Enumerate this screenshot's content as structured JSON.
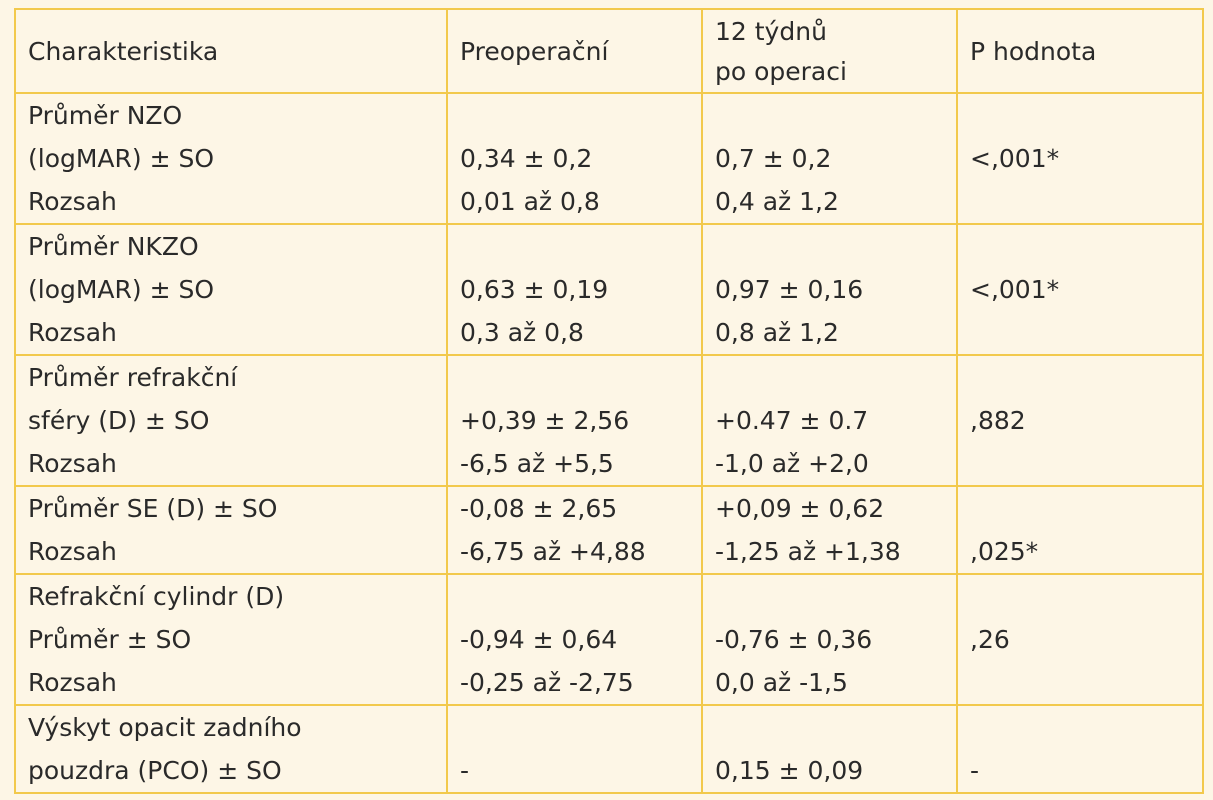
{
  "header": {
    "characteristic": "Charakteristika",
    "preop": "Preoperační",
    "postop_line1": "12 týdnů",
    "postop_line2": "po operaci",
    "pvalue": "P hodnota"
  },
  "rows": [
    {
      "label": [
        "Průměr NZO",
        "(logMAR) ± SO",
        "Rozsah"
      ],
      "preop": [
        "",
        "0,34 ± 0,2",
        "0,01 až 0,8"
      ],
      "postop": [
        "",
        "0,7 ± 0,2",
        "0,4 až 1,2"
      ],
      "p": [
        "",
        "<,001*",
        ""
      ]
    },
    {
      "label": [
        "Průměr NKZO",
        "(logMAR) ± SO",
        "Rozsah"
      ],
      "preop": [
        "",
        "0,63 ± 0,19",
        "0,3 až 0,8"
      ],
      "postop": [
        "",
        "0,97 ± 0,16",
        "0,8 až 1,2"
      ],
      "p": [
        "",
        "<,001*",
        ""
      ]
    },
    {
      "label": [
        "Průměr refrakční",
        "sféry (D) ± SO",
        "Rozsah"
      ],
      "preop": [
        "",
        "+0,39 ± 2,56",
        "-6,5 až +5,5"
      ],
      "postop": [
        "",
        "+0.47 ± 0.7",
        "-1,0 až +2,0"
      ],
      "p": [
        "",
        ",882",
        ""
      ]
    },
    {
      "label": [
        "Průměr SE (D) ± SO",
        "Rozsah"
      ],
      "preop": [
        "-0,08 ± 2,65",
        "-6,75 až +4,88"
      ],
      "postop": [
        "+0,09 ± 0,62",
        "-1,25 až +1,38"
      ],
      "p": [
        "",
        ",025*"
      ]
    },
    {
      "label": [
        "Refrakční cylindr (D)",
        "Průměr ± SO",
        "Rozsah"
      ],
      "preop": [
        "",
        "-0,94 ± 0,64",
        "-0,25 až -2,75"
      ],
      "postop": [
        "",
        "-0,76 ± 0,36",
        "0,0 až -1,5"
      ],
      "p": [
        "",
        ",26",
        ""
      ]
    },
    {
      "label": [
        "Výskyt opacit zadního",
        "pouzdra (PCO) ± SO"
      ],
      "preop": [
        "",
        "-"
      ],
      "postop": [
        "",
        "0,15 ± 0,09"
      ],
      "p": [
        "",
        "-"
      ]
    }
  ]
}
